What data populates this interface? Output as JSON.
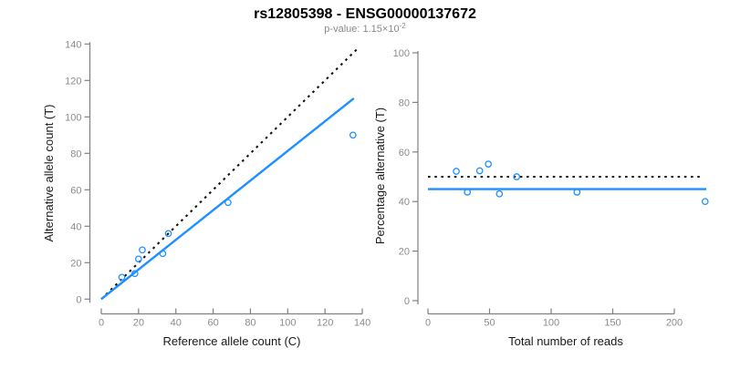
{
  "header": {
    "title": "rs12805398 - ENSG00000137672",
    "subtitle_prefix": "p-value: 1.15×10",
    "subtitle_exponent": "-2"
  },
  "colors": {
    "point_blue": "#1E90FF",
    "fit_blue": "#1E90FF",
    "reference_black": "#111111",
    "axis_gray": "#808080",
    "tick_text_gray": "#8c8c8c"
  },
  "chart_data": [
    {
      "type": "scatter",
      "panel": "allele-counts",
      "xlabel": "Reference allele count (C)",
      "ylabel": "Alternative allele count (T)",
      "xlim": [
        0,
        140
      ],
      "ylim": [
        0,
        140
      ],
      "grid": false,
      "xticks": [
        0,
        20,
        40,
        60,
        80,
        100,
        120,
        140
      ],
      "yticks": [
        0,
        20,
        40,
        60,
        80,
        100,
        120,
        140
      ],
      "points": [
        [
          11,
          12
        ],
        [
          18,
          14
        ],
        [
          20,
          22
        ],
        [
          22,
          27
        ],
        [
          33,
          25
        ],
        [
          36,
          36
        ],
        [
          68,
          53
        ],
        [
          135,
          90
        ]
      ],
      "lines": [
        {
          "name": "identity-line",
          "style": "dotted",
          "color": "#111111",
          "x": [
            0,
            137
          ],
          "y": [
            0,
            137
          ]
        },
        {
          "name": "fit-line",
          "style": "solid",
          "color": "#1E90FF",
          "x": [
            0,
            135.5
          ],
          "y": [
            0,
            110.2
          ]
        }
      ]
    },
    {
      "type": "scatter",
      "panel": "percentage-vs-reads",
      "xlabel": "Total number of reads",
      "ylabel": "Percentage alternative (T)",
      "xlim": [
        0,
        228
      ],
      "ylim": [
        0,
        100
      ],
      "grid": false,
      "xticks": [
        0,
        50,
        100,
        150,
        200
      ],
      "yticks": [
        0,
        20,
        40,
        60,
        80,
        100
      ],
      "points": [
        [
          23,
          52.2
        ],
        [
          32,
          43.8
        ],
        [
          42,
          52.4
        ],
        [
          49,
          55.1
        ],
        [
          58,
          43.1
        ],
        [
          72,
          50.0
        ],
        [
          121,
          43.8
        ],
        [
          225,
          40.0
        ]
      ],
      "lines": [
        {
          "name": "expected-50pct-line",
          "style": "dotted",
          "color": "#111111",
          "x": [
            0,
            222
          ],
          "y": [
            50,
            50
          ]
        },
        {
          "name": "fit-line",
          "style": "solid",
          "color": "#1E90FF",
          "x": [
            0,
            226
          ],
          "y": [
            45,
            45
          ]
        }
      ]
    }
  ]
}
